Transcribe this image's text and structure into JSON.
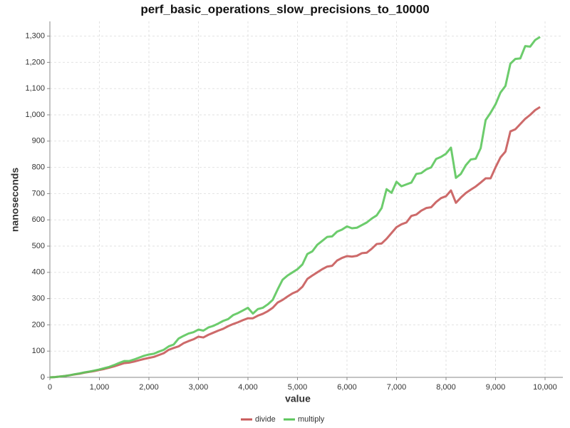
{
  "chart_data": {
    "type": "line",
    "title": "perf_basic_operations_slow_precisions_to_10000",
    "x_label": "value",
    "y_label": "nanoseconds",
    "x": [
      0,
      100,
      200,
      300,
      400,
      500,
      600,
      700,
      800,
      900,
      1000,
      1100,
      1200,
      1300,
      1400,
      1500,
      1600,
      1700,
      1800,
      1900,
      2000,
      2100,
      2200,
      2300,
      2400,
      2500,
      2600,
      2700,
      2800,
      2900,
      3000,
      3100,
      3200,
      3300,
      3400,
      3500,
      3600,
      3700,
      3800,
      3900,
      4000,
      4100,
      4200,
      4300,
      4400,
      4500,
      4600,
      4700,
      4800,
      4900,
      5000,
      5100,
      5200,
      5300,
      5400,
      5500,
      5600,
      5700,
      5800,
      5900,
      6000,
      6100,
      6200,
      6300,
      6400,
      6500,
      6600,
      6700,
      6800,
      6900,
      7000,
      7100,
      7200,
      7300,
      7400,
      7500,
      7600,
      7700,
      7800,
      7900,
      8000,
      8100,
      8200,
      8300,
      8400,
      8500,
      8600,
      8700,
      8800,
      8900,
      9000,
      9100,
      9200,
      9300,
      9400,
      9500,
      9600,
      9700,
      9800,
      9900
    ],
    "series": [
      {
        "name": "divide",
        "color": "#c85a5a",
        "values": [
          0,
          1,
          3,
          5,
          8,
          11,
          14,
          18,
          21,
          24,
          28,
          32,
          37,
          42,
          48,
          54,
          56,
          60,
          65,
          70,
          74,
          78,
          85,
          92,
          105,
          112,
          118,
          130,
          138,
          145,
          155,
          152,
          162,
          170,
          178,
          185,
          195,
          203,
          210,
          218,
          225,
          225,
          235,
          242,
          252,
          265,
          285,
          295,
          308,
          320,
          328,
          345,
          375,
          388,
          400,
          412,
          422,
          425,
          445,
          455,
          462,
          460,
          463,
          473,
          475,
          490,
          508,
          510,
          528,
          550,
          572,
          583,
          590,
          615,
          620,
          635,
          645,
          648,
          668,
          683,
          690,
          712,
          665,
          685,
          702,
          715,
          727,
          742,
          758,
          758,
          800,
          838,
          860,
          937,
          945,
          965,
          985,
          1000,
          1018,
          1030
        ]
      },
      {
        "name": "multiply",
        "color": "#5cc65c",
        "values": [
          0,
          1,
          3,
          5,
          8,
          12,
          15,
          19,
          22,
          26,
          30,
          35,
          40,
          47,
          55,
          62,
          62,
          68,
          75,
          82,
          87,
          90,
          98,
          105,
          118,
          125,
          148,
          158,
          167,
          172,
          182,
          178,
          190,
          196,
          205,
          215,
          222,
          237,
          245,
          255,
          265,
          243,
          260,
          265,
          278,
          295,
          335,
          372,
          388,
          400,
          412,
          430,
          470,
          480,
          505,
          520,
          535,
          537,
          555,
          563,
          575,
          568,
          570,
          580,
          590,
          605,
          617,
          645,
          717,
          703,
          745,
          728,
          735,
          742,
          775,
          778,
          792,
          800,
          832,
          840,
          852,
          875,
          760,
          775,
          808,
          830,
          833,
          873,
          980,
          1008,
          1040,
          1085,
          1110,
          1195,
          1213,
          1215,
          1262,
          1260,
          1285,
          1297
        ]
      }
    ],
    "xlim": [
      0,
      10360
    ],
    "ylim": [
      0,
      1356
    ],
    "xticks": [
      0,
      {
        "value": 1000,
        "label": "1,000"
      },
      {
        "value": 2000,
        "label": "2,000"
      },
      {
        "value": 3000,
        "label": "3,000"
      },
      {
        "value": 4000,
        "label": "4,000"
      },
      {
        "value": 5000,
        "label": "5,000"
      },
      {
        "value": 6000,
        "label": "6,000"
      },
      {
        "value": 7000,
        "label": "7,000"
      },
      {
        "value": 8000,
        "label": "8,000"
      },
      {
        "value": 9000,
        "label": "9,000"
      },
      {
        "value": 10000,
        "label": "10,000"
      }
    ],
    "yticks": [
      0,
      100,
      200,
      300,
      400,
      500,
      600,
      700,
      800,
      900,
      {
        "value": 1000,
        "label": "1,000"
      },
      {
        "value": 1100,
        "label": "1,100"
      },
      {
        "value": 1200,
        "label": "1,200"
      },
      {
        "value": 1300,
        "label": "1,300"
      }
    ],
    "grid": true,
    "legend": "bottom"
  }
}
